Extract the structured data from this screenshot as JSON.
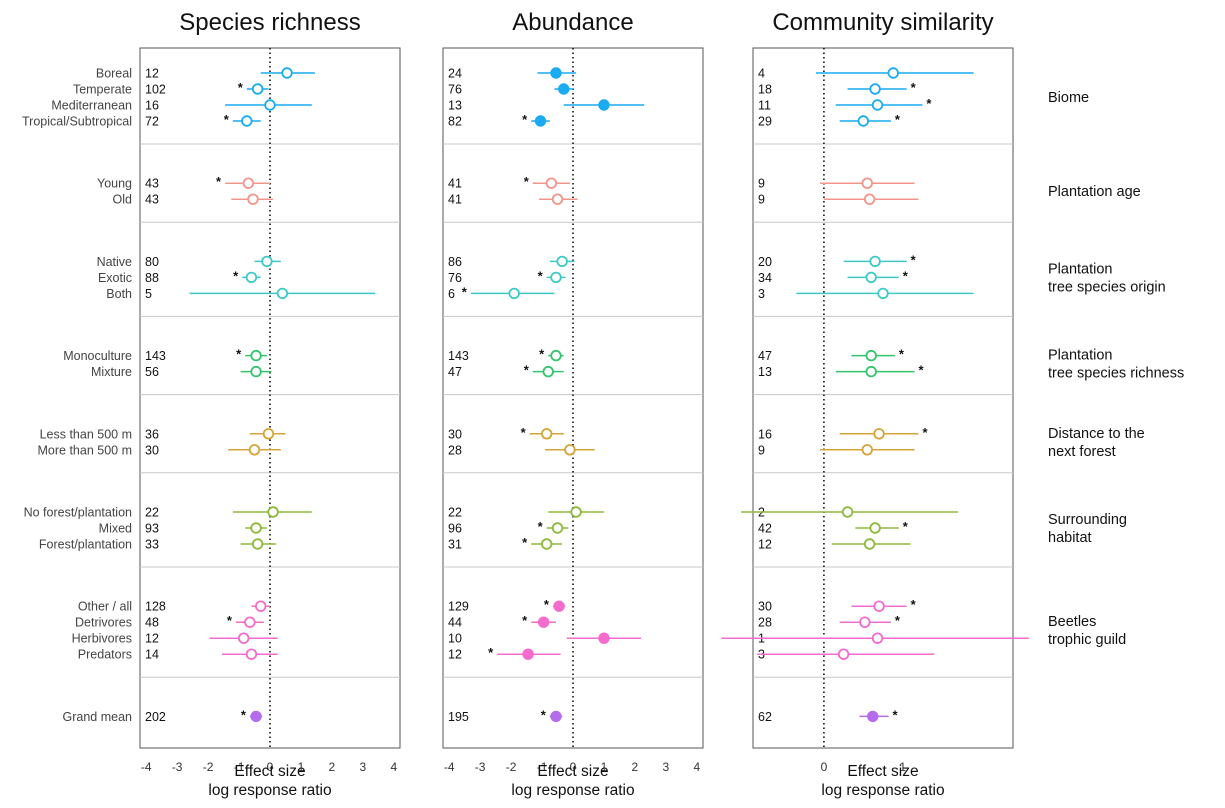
{
  "chart_data": {
    "type": "forest",
    "axis_title_line1": "Effect size",
    "axis_title_line2": "log response ratio",
    "reference_line": 0,
    "colors": {
      "Biome": "#1aabf2",
      "Plantation age": "#f2958a",
      "Plantation tree species origin": "#3ec9c9",
      "Plantation tree species richness": "#33c46d",
      "Distance to the next forest": "#d4a43a",
      "Surrounding habitat": "#8db83a",
      "Beetles trophic guild": "#f56ccc",
      "Grand mean": "#b56cec"
    },
    "panels": [
      {
        "title": "Species richness",
        "xlim": [
          -4.2,
          4.2
        ],
        "xticks": [
          -4,
          -3,
          -2,
          -1,
          0,
          1,
          2,
          3,
          4
        ],
        "xtick_labels": [
          "-4",
          "-3",
          "-2",
          "-1",
          "0",
          "1",
          "2",
          "3",
          "4"
        ]
      },
      {
        "title": "Abundance",
        "xlim": [
          -4.2,
          4.2
        ],
        "xticks": [
          -4,
          -3,
          -2,
          -1,
          0,
          1,
          2,
          3,
          4
        ],
        "xtick_labels": [
          "-4",
          "-3",
          "-2",
          "-1",
          "0",
          "1",
          "2",
          "3",
          "4"
        ]
      },
      {
        "title": "Community similarity",
        "xlim": [
          -0.9,
          2.4
        ],
        "xticks": [
          0,
          1
        ],
        "xtick_labels": [
          "0",
          "1"
        ]
      }
    ],
    "groups": [
      {
        "label_lines": [
          "Biome"
        ],
        "color_key": "Biome",
        "rows": [
          {
            "label": "Boreal",
            "values": [
              {
                "n": "12",
                "est": 0.55,
                "lo": -0.3,
                "hi": 1.45,
                "filled": false,
                "sig": false
              },
              {
                "n": "24",
                "est": -0.55,
                "lo": -1.15,
                "hi": 0.1,
                "filled": true,
                "sig": false
              },
              {
                "n": "4",
                "est": 0.88,
                "lo": -0.1,
                "hi": 1.9,
                "filled": false,
                "sig": false
              }
            ]
          },
          {
            "label": "Temperate",
            "values": [
              {
                "n": "102",
                "est": -0.4,
                "lo": -0.75,
                "hi": -0.05,
                "filled": false,
                "sig": true
              },
              {
                "n": "76",
                "est": -0.3,
                "lo": -0.6,
                "hi": 0.0,
                "filled": true,
                "sig": false
              },
              {
                "n": "18",
                "est": 0.65,
                "lo": 0.3,
                "hi": 1.05,
                "filled": false,
                "sig": true
              }
            ]
          },
          {
            "label": "Mediterranean",
            "values": [
              {
                "n": "16",
                "est": 0.0,
                "lo": -1.45,
                "hi": 1.35,
                "filled": false,
                "sig": false
              },
              {
                "n": "13",
                "est": 1.0,
                "lo": -0.3,
                "hi": 2.3,
                "filled": true,
                "sig": false
              },
              {
                "n": "11",
                "est": 0.68,
                "lo": 0.15,
                "hi": 1.25,
                "filled": false,
                "sig": true
              }
            ]
          },
          {
            "label": "Tropical/Subtropical",
            "values": [
              {
                "n": "72",
                "est": -0.75,
                "lo": -1.2,
                "hi": -0.3,
                "filled": false,
                "sig": true
              },
              {
                "n": "82",
                "est": -1.05,
                "lo": -1.35,
                "hi": -0.75,
                "filled": true,
                "sig": true
              },
              {
                "n": "29",
                "est": 0.5,
                "lo": 0.2,
                "hi": 0.85,
                "filled": false,
                "sig": true
              }
            ]
          }
        ]
      },
      {
        "label_lines": [
          "Plantation age"
        ],
        "color_key": "Plantation age",
        "rows": [
          {
            "label": "Young",
            "values": [
              {
                "n": "43",
                "est": -0.7,
                "lo": -1.45,
                "hi": 0.0,
                "filled": false,
                "sig": true
              },
              {
                "n": "41",
                "est": -0.7,
                "lo": -1.3,
                "hi": -0.1,
                "filled": false,
                "sig": true
              },
              {
                "n": "9",
                "est": 0.55,
                "lo": -0.05,
                "hi": 1.15,
                "filled": false,
                "sig": false
              }
            ]
          },
          {
            "label": "Old",
            "values": [
              {
                "n": "43",
                "est": -0.55,
                "lo": -1.25,
                "hi": 0.1,
                "filled": false,
                "sig": false
              },
              {
                "n": "41",
                "est": -0.5,
                "lo": -1.1,
                "hi": 0.15,
                "filled": false,
                "sig": false
              },
              {
                "n": "9",
                "est": 0.58,
                "lo": 0.0,
                "hi": 1.2,
                "filled": false,
                "sig": false
              }
            ]
          }
        ]
      },
      {
        "label_lines": [
          "Plantation",
          "tree species origin"
        ],
        "color_key": "Plantation tree species origin",
        "rows": [
          {
            "label": "Native",
            "values": [
              {
                "n": "80",
                "est": -0.1,
                "lo": -0.5,
                "hi": 0.35,
                "filled": false,
                "sig": false
              },
              {
                "n": "86",
                "est": -0.35,
                "lo": -0.75,
                "hi": 0.05,
                "filled": false,
                "sig": false
              },
              {
                "n": "20",
                "est": 0.65,
                "lo": 0.25,
                "hi": 1.05,
                "filled": false,
                "sig": true
              }
            ]
          },
          {
            "label": "Exotic",
            "values": [
              {
                "n": "88",
                "est": -0.6,
                "lo": -0.9,
                "hi": -0.3,
                "filled": false,
                "sig": true
              },
              {
                "n": "76",
                "est": -0.55,
                "lo": -0.85,
                "hi": -0.25,
                "filled": false,
                "sig": true
              },
              {
                "n": "34",
                "est": 0.6,
                "lo": 0.3,
                "hi": 0.95,
                "filled": false,
                "sig": true
              }
            ]
          },
          {
            "label": "Both",
            "values": [
              {
                "n": "5",
                "est": 0.4,
                "lo": -2.6,
                "hi": 3.4,
                "filled": false,
                "sig": false
              },
              {
                "n": "6",
                "est": -1.9,
                "lo": -3.3,
                "hi": -0.6,
                "filled": false,
                "sig": true
              },
              {
                "n": "3",
                "est": 0.75,
                "lo": -0.35,
                "hi": 1.9,
                "filled": false,
                "sig": false
              }
            ]
          }
        ]
      },
      {
        "label_lines": [
          "Plantation",
          "tree species richness"
        ],
        "color_key": "Plantation tree species richness",
        "rows": [
          {
            "label": "Monoculture",
            "values": [
              {
                "n": "143",
                "est": -0.45,
                "lo": -0.8,
                "hi": -0.1,
                "filled": false,
                "sig": true
              },
              {
                "n": "143",
                "est": -0.55,
                "lo": -0.8,
                "hi": -0.3,
                "filled": false,
                "sig": true
              },
              {
                "n": "47",
                "est": 0.6,
                "lo": 0.35,
                "hi": 0.9,
                "filled": false,
                "sig": true
              }
            ]
          },
          {
            "label": "Mixture",
            "values": [
              {
                "n": "56",
                "est": -0.45,
                "lo": -0.95,
                "hi": 0.05,
                "filled": false,
                "sig": false
              },
              {
                "n": "47",
                "est": -0.8,
                "lo": -1.3,
                "hi": -0.3,
                "filled": false,
                "sig": true
              },
              {
                "n": "13",
                "est": 0.6,
                "lo": 0.15,
                "hi": 1.15,
                "filled": false,
                "sig": true
              }
            ]
          }
        ]
      },
      {
        "label_lines": [
          "Distance to the",
          "next forest"
        ],
        "color_key": "Distance to the next forest",
        "rows": [
          {
            "label": "Less than 500 m",
            "values": [
              {
                "n": "36",
                "est": -0.05,
                "lo": -0.65,
                "hi": 0.5,
                "filled": false,
                "sig": false
              },
              {
                "n": "30",
                "est": -0.85,
                "lo": -1.4,
                "hi": -0.3,
                "filled": false,
                "sig": true
              },
              {
                "n": "16",
                "est": 0.7,
                "lo": 0.2,
                "hi": 1.2,
                "filled": false,
                "sig": true
              }
            ]
          },
          {
            "label": "More than 500 m",
            "values": [
              {
                "n": "30",
                "est": -0.5,
                "lo": -1.35,
                "hi": 0.35,
                "filled": false,
                "sig": false
              },
              {
                "n": "28",
                "est": -0.1,
                "lo": -0.9,
                "hi": 0.7,
                "filled": false,
                "sig": false
              },
              {
                "n": "9",
                "est": 0.55,
                "lo": -0.05,
                "hi": 1.15,
                "filled": false,
                "sig": false
              }
            ]
          }
        ]
      },
      {
        "label_lines": [
          "Surrounding",
          "habitat"
        ],
        "color_key": "Surrounding habitat",
        "rows": [
          {
            "label": "No forest/plantation",
            "values": [
              {
                "n": "22",
                "est": 0.1,
                "lo": -1.2,
                "hi": 1.35,
                "filled": false,
                "sig": false
              },
              {
                "n": "22",
                "est": 0.1,
                "lo": -0.8,
                "hi": 1.0,
                "filled": false,
                "sig": false
              },
              {
                "n": "2",
                "est": 0.3,
                "lo": -1.05,
                "hi": 1.7,
                "filled": false,
                "sig": false
              }
            ]
          },
          {
            "label": "Mixed",
            "values": [
              {
                "n": "93",
                "est": -0.45,
                "lo": -0.8,
                "hi": -0.1,
                "filled": false,
                "sig": false
              },
              {
                "n": "96",
                "est": -0.5,
                "lo": -0.85,
                "hi": -0.15,
                "filled": false,
                "sig": true
              },
              {
                "n": "42",
                "est": 0.65,
                "lo": 0.4,
                "hi": 0.95,
                "filled": false,
                "sig": true
              }
            ]
          },
          {
            "label": "Forest/plantation",
            "values": [
              {
                "n": "33",
                "est": -0.4,
                "lo": -0.95,
                "hi": 0.2,
                "filled": false,
                "sig": false
              },
              {
                "n": "31",
                "est": -0.85,
                "lo": -1.35,
                "hi": -0.35,
                "filled": false,
                "sig": true
              },
              {
                "n": "12",
                "est": 0.58,
                "lo": 0.1,
                "hi": 1.1,
                "filled": false,
                "sig": false
              }
            ]
          }
        ]
      },
      {
        "label_lines": [
          "Beetles",
          "trophic guild"
        ],
        "color_key": "Beetles trophic guild",
        "rows": [
          {
            "label": "Other / all",
            "values": [
              {
                "n": "128",
                "est": -0.3,
                "lo": -0.6,
                "hi": 0.0,
                "filled": false,
                "sig": false
              },
              {
                "n": "129",
                "est": -0.45,
                "lo": -0.65,
                "hi": -0.25,
                "filled": true,
                "sig": true
              },
              {
                "n": "30",
                "est": 0.7,
                "lo": 0.35,
                "hi": 1.05,
                "filled": false,
                "sig": true
              }
            ]
          },
          {
            "label": "Detrivores",
            "values": [
              {
                "n": "48",
                "est": -0.65,
                "lo": -1.1,
                "hi": -0.2,
                "filled": false,
                "sig": true
              },
              {
                "n": "44",
                "est": -0.95,
                "lo": -1.35,
                "hi": -0.55,
                "filled": true,
                "sig": true
              },
              {
                "n": "28",
                "est": 0.52,
                "lo": 0.2,
                "hi": 0.85,
                "filled": false,
                "sig": true
              }
            ]
          },
          {
            "label": "Herbivores",
            "values": [
              {
                "n": "12",
                "est": -0.85,
                "lo": -1.95,
                "hi": 0.25,
                "filled": false,
                "sig": false
              },
              {
                "n": "10",
                "est": 1.0,
                "lo": -0.2,
                "hi": 2.2,
                "filled": true,
                "sig": false
              },
              {
                "n": "1",
                "est": 0.68,
                "lo": -1.3,
                "hi": 2.6,
                "filled": false,
                "sig": false
              }
            ]
          },
          {
            "label": "Predators",
            "values": [
              {
                "n": "14",
                "est": -0.6,
                "lo": -1.55,
                "hi": 0.25,
                "filled": false,
                "sig": false
              },
              {
                "n": "12",
                "est": -1.45,
                "lo": -2.45,
                "hi": -0.4,
                "filled": true,
                "sig": true
              },
              {
                "n": "3",
                "est": 0.25,
                "lo": -0.85,
                "hi": 1.4,
                "filled": false,
                "sig": false
              }
            ]
          }
        ]
      },
      {
        "label_lines": [],
        "color_key": "Grand mean",
        "rows": [
          {
            "label": "Grand mean",
            "values": [
              {
                "n": "202",
                "est": -0.45,
                "lo": -0.65,
                "hi": -0.25,
                "filled": true,
                "sig": true
              },
              {
                "n": "195",
                "est": -0.55,
                "lo": -0.75,
                "hi": -0.35,
                "filled": true,
                "sig": true
              },
              {
                "n": "62",
                "est": 0.62,
                "lo": 0.45,
                "hi": 0.82,
                "filled": true,
                "sig": true
              }
            ]
          }
        ]
      }
    ]
  }
}
